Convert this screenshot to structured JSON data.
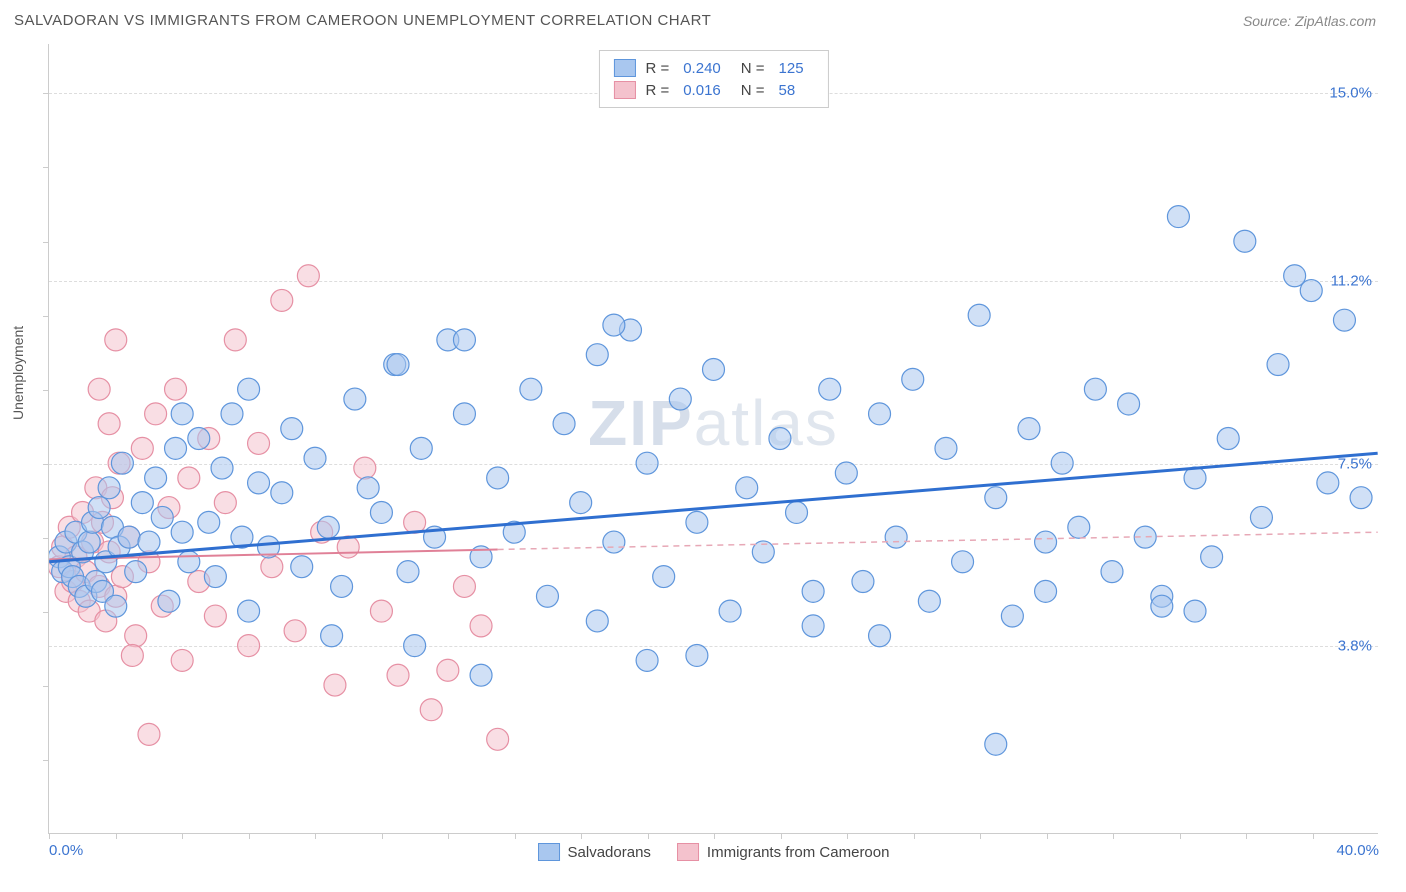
{
  "header": {
    "title": "SALVADORAN VS IMMIGRANTS FROM CAMEROON UNEMPLOYMENT CORRELATION CHART",
    "source_prefix": "Source: ",
    "source": "ZipAtlas.com"
  },
  "chart": {
    "type": "scatter",
    "ylabel": "Unemployment",
    "watermark": {
      "bold": "ZIP",
      "rest": "atlas"
    },
    "xlim": [
      0,
      40
    ],
    "ylim": [
      0,
      16
    ],
    "x_axis_labels": [
      {
        "pos": 0,
        "text": "0.0%",
        "color": "#3b74d0"
      },
      {
        "pos": 40,
        "text": "40.0%",
        "color": "#3b74d0"
      }
    ],
    "y_axis_labels": [
      {
        "pos": 3.8,
        "text": "3.8%",
        "color": "#3b74d0"
      },
      {
        "pos": 7.5,
        "text": "7.5%",
        "color": "#3b74d0"
      },
      {
        "pos": 11.2,
        "text": "11.2%",
        "color": "#3b74d0"
      },
      {
        "pos": 15.0,
        "text": "15.0%",
        "color": "#3b74d0"
      }
    ],
    "gridlines_y": [
      3.8,
      7.5,
      11.2,
      15.0
    ],
    "xticks": [
      0,
      2,
      4,
      6,
      8,
      10,
      12,
      14,
      16,
      18,
      20,
      22,
      24,
      26,
      28,
      30,
      32,
      34,
      36,
      38
    ],
    "yticks": [
      1.5,
      3.0,
      4.5,
      6.0,
      7.5,
      9.0,
      10.5,
      12.0,
      13.5,
      15.0
    ],
    "marker_radius": 11,
    "marker_opacity": 0.55,
    "series": [
      {
        "name": "Salvadorans",
        "color_fill": "#a9c7ef",
        "color_stroke": "#5f96dc",
        "stats": {
          "R": "0.240",
          "N": "125"
        },
        "trend": {
          "x1": 0,
          "y1": 5.5,
          "x2": 40,
          "y2": 7.7,
          "color": "#2f6fd0",
          "width": 3,
          "dash": "none",
          "solid_until_x": 40
        },
        "points": [
          [
            0.3,
            5.6
          ],
          [
            0.4,
            5.3
          ],
          [
            0.5,
            5.9
          ],
          [
            0.6,
            5.4
          ],
          [
            0.7,
            5.2
          ],
          [
            0.8,
            6.1
          ],
          [
            0.9,
            5.0
          ],
          [
            1.0,
            5.7
          ],
          [
            1.1,
            4.8
          ],
          [
            1.2,
            5.9
          ],
          [
            1.3,
            6.3
          ],
          [
            1.4,
            5.1
          ],
          [
            1.5,
            6.6
          ],
          [
            1.6,
            4.9
          ],
          [
            1.7,
            5.5
          ],
          [
            1.8,
            7.0
          ],
          [
            1.9,
            6.2
          ],
          [
            2.0,
            4.6
          ],
          [
            2.1,
            5.8
          ],
          [
            2.2,
            7.5
          ],
          [
            2.4,
            6.0
          ],
          [
            2.6,
            5.3
          ],
          [
            2.8,
            6.7
          ],
          [
            3.0,
            5.9
          ],
          [
            3.2,
            7.2
          ],
          [
            3.4,
            6.4
          ],
          [
            3.6,
            4.7
          ],
          [
            3.8,
            7.8
          ],
          [
            4.0,
            6.1
          ],
          [
            4.2,
            5.5
          ],
          [
            4.5,
            8.0
          ],
          [
            4.8,
            6.3
          ],
          [
            5.0,
            5.2
          ],
          [
            5.2,
            7.4
          ],
          [
            5.5,
            8.5
          ],
          [
            5.8,
            6.0
          ],
          [
            6.0,
            4.5
          ],
          [
            6.3,
            7.1
          ],
          [
            6.6,
            5.8
          ],
          [
            7.0,
            6.9
          ],
          [
            7.3,
            8.2
          ],
          [
            7.6,
            5.4
          ],
          [
            8.0,
            7.6
          ],
          [
            8.4,
            6.2
          ],
          [
            8.8,
            5.0
          ],
          [
            9.2,
            8.8
          ],
          [
            9.6,
            7.0
          ],
          [
            10.0,
            6.5
          ],
          [
            10.4,
            9.5
          ],
          [
            10.8,
            5.3
          ],
          [
            11.2,
            7.8
          ],
          [
            11.6,
            6.0
          ],
          [
            12.0,
            10.0
          ],
          [
            12.5,
            8.5
          ],
          [
            13.0,
            5.6
          ],
          [
            13.5,
            7.2
          ],
          [
            14.0,
            6.1
          ],
          [
            14.5,
            9.0
          ],
          [
            15.0,
            4.8
          ],
          [
            15.5,
            8.3
          ],
          [
            16.0,
            6.7
          ],
          [
            16.5,
            9.7
          ],
          [
            17.0,
            5.9
          ],
          [
            17.5,
            10.2
          ],
          [
            18.0,
            7.5
          ],
          [
            18.5,
            5.2
          ],
          [
            19.0,
            8.8
          ],
          [
            19.5,
            6.3
          ],
          [
            20.0,
            9.4
          ],
          [
            20.5,
            4.5
          ],
          [
            21.0,
            7.0
          ],
          [
            21.5,
            5.7
          ],
          [
            22.0,
            8.0
          ],
          [
            22.5,
            6.5
          ],
          [
            23.0,
            4.9
          ],
          [
            23.5,
            9.0
          ],
          [
            24.0,
            7.3
          ],
          [
            24.5,
            5.1
          ],
          [
            25.0,
            8.5
          ],
          [
            25.5,
            6.0
          ],
          [
            26.0,
            9.2
          ],
          [
            26.5,
            4.7
          ],
          [
            27.0,
            7.8
          ],
          [
            27.5,
            5.5
          ],
          [
            28.0,
            10.5
          ],
          [
            28.5,
            6.8
          ],
          [
            29.0,
            4.4
          ],
          [
            29.5,
            8.2
          ],
          [
            30.0,
            5.9
          ],
          [
            30.5,
            7.5
          ],
          [
            31.0,
            6.2
          ],
          [
            31.5,
            9.0
          ],
          [
            32.0,
            5.3
          ],
          [
            32.5,
            8.7
          ],
          [
            33.0,
            6.0
          ],
          [
            33.5,
            4.8
          ],
          [
            34.0,
            12.5
          ],
          [
            34.5,
            7.2
          ],
          [
            35.0,
            5.6
          ],
          [
            35.5,
            8.0
          ],
          [
            36.0,
            12.0
          ],
          [
            36.5,
            6.4
          ],
          [
            37.0,
            9.5
          ],
          [
            37.5,
            11.3
          ],
          [
            38.0,
            11.0
          ],
          [
            38.5,
            7.1
          ],
          [
            39.0,
            10.4
          ],
          [
            39.5,
            6.8
          ],
          [
            18.0,
            3.5
          ],
          [
            13.0,
            3.2
          ],
          [
            28.5,
            1.8
          ],
          [
            8.5,
            4.0
          ],
          [
            11.0,
            3.8
          ],
          [
            30.0,
            4.9
          ],
          [
            23.0,
            4.2
          ],
          [
            16.5,
            4.3
          ],
          [
            19.5,
            3.6
          ],
          [
            25.0,
            4.0
          ],
          [
            6.0,
            9.0
          ],
          [
            4.0,
            8.5
          ],
          [
            10.5,
            9.5
          ],
          [
            12.5,
            10.0
          ],
          [
            17.0,
            10.3
          ],
          [
            33.5,
            4.6
          ],
          [
            34.5,
            4.5
          ]
        ]
      },
      {
        "name": "Immigrants from Cameroon",
        "color_fill": "#f4c2cd",
        "color_stroke": "#e690a4",
        "stats": {
          "R": "0.016",
          "N": "58"
        },
        "trend_solid": {
          "x1": 0,
          "y1": 5.55,
          "x2": 13.5,
          "y2": 5.75,
          "color": "#e08097",
          "width": 2
        },
        "trend_dash": {
          "x1": 13.5,
          "y1": 5.75,
          "x2": 40,
          "y2": 6.1,
          "color": "#e7a8b6",
          "width": 1.5
        },
        "points": [
          [
            0.3,
            5.4
          ],
          [
            0.4,
            5.8
          ],
          [
            0.5,
            4.9
          ],
          [
            0.6,
            6.2
          ],
          [
            0.7,
            5.1
          ],
          [
            0.8,
            5.6
          ],
          [
            0.9,
            4.7
          ],
          [
            1.0,
            6.5
          ],
          [
            1.1,
            5.3
          ],
          [
            1.2,
            4.5
          ],
          [
            1.3,
            5.9
          ],
          [
            1.4,
            7.0
          ],
          [
            1.5,
            5.0
          ],
          [
            1.6,
            6.3
          ],
          [
            1.7,
            4.3
          ],
          [
            1.8,
            5.7
          ],
          [
            1.9,
            6.8
          ],
          [
            2.0,
            4.8
          ],
          [
            2.1,
            7.5
          ],
          [
            2.2,
            5.2
          ],
          [
            2.4,
            6.0
          ],
          [
            2.6,
            4.0
          ],
          [
            2.8,
            7.8
          ],
          [
            3.0,
            5.5
          ],
          [
            3.2,
            8.5
          ],
          [
            3.4,
            4.6
          ],
          [
            3.6,
            6.6
          ],
          [
            3.8,
            9.0
          ],
          [
            4.0,
            3.5
          ],
          [
            4.2,
            7.2
          ],
          [
            4.5,
            5.1
          ],
          [
            4.8,
            8.0
          ],
          [
            5.0,
            4.4
          ],
          [
            5.3,
            6.7
          ],
          [
            5.6,
            10.0
          ],
          [
            6.0,
            3.8
          ],
          [
            6.3,
            7.9
          ],
          [
            6.7,
            5.4
          ],
          [
            7.0,
            10.8
          ],
          [
            7.4,
            4.1
          ],
          [
            7.8,
            11.3
          ],
          [
            8.2,
            6.1
          ],
          [
            8.6,
            3.0
          ],
          [
            9.0,
            5.8
          ],
          [
            9.5,
            7.4
          ],
          [
            10.0,
            4.5
          ],
          [
            10.5,
            3.2
          ],
          [
            11.0,
            6.3
          ],
          [
            11.5,
            2.5
          ],
          [
            12.0,
            3.3
          ],
          [
            12.5,
            5.0
          ],
          [
            13.0,
            4.2
          ],
          [
            13.5,
            1.9
          ],
          [
            2.0,
            10.0
          ],
          [
            1.5,
            9.0
          ],
          [
            3.0,
            2.0
          ],
          [
            1.8,
            8.3
          ],
          [
            2.5,
            3.6
          ]
        ]
      }
    ],
    "legend_top": {
      "rows": [
        {
          "swatch_fill": "#a9c7ef",
          "swatch_stroke": "#5f96dc",
          "r": "0.240",
          "n": "125",
          "value_color": "#3b74d0"
        },
        {
          "swatch_fill": "#f4c2cd",
          "swatch_stroke": "#e690a4",
          "r": "0.016",
          "n": "58",
          "value_color": "#3b74d0"
        }
      ]
    },
    "legend_bottom": [
      {
        "swatch_fill": "#a9c7ef",
        "swatch_stroke": "#5f96dc",
        "label": "Salvadorans"
      },
      {
        "swatch_fill": "#f4c2cd",
        "swatch_stroke": "#e690a4",
        "label": "Immigrants from Cameroon"
      }
    ],
    "colors": {
      "axis": "#cccccc",
      "grid": "#dddddd",
      "text": "#555555"
    }
  }
}
